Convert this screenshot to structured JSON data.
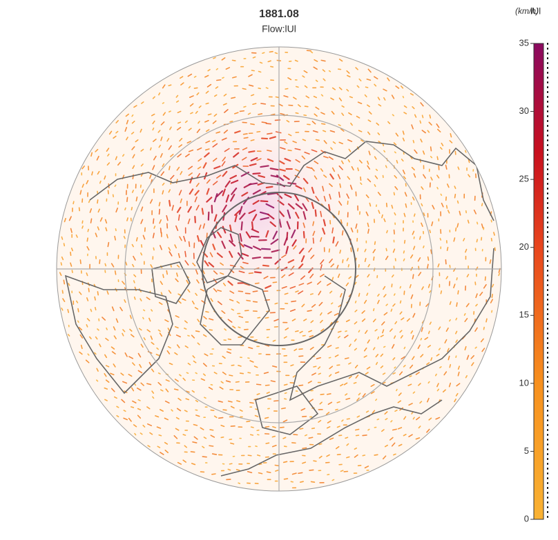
{
  "header": {
    "title": "1881.08",
    "subtitle": "Flow:lUl"
  },
  "colorbar": {
    "unit": "(km/h)",
    "variable": "lUl",
    "range": [
      0,
      35
    ],
    "ticks": [
      0,
      5,
      10,
      15,
      20,
      25,
      30,
      35
    ],
    "stops": [
      {
        "value": 0,
        "color": "#f9b233"
      },
      {
        "value": 10,
        "color": "#f7901e"
      },
      {
        "value": 20,
        "color": "#e8461e"
      },
      {
        "value": 27,
        "color": "#c8101e"
      },
      {
        "value": 35,
        "color": "#8a0a60"
      }
    ]
  }
}
